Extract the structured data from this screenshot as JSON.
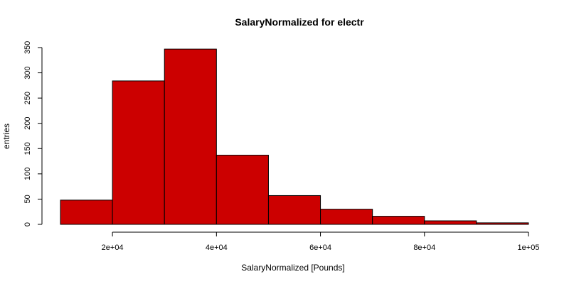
{
  "chart_data": {
    "type": "bar",
    "title": "SalaryNormalized for electr",
    "xlabel": "SalaryNormalized [Pounds]",
    "ylabel": "entries",
    "bar_color": "#cc0000",
    "bin_edges": [
      10000,
      20000,
      30000,
      40000,
      50000,
      60000,
      70000,
      80000,
      90000,
      100000
    ],
    "values": [
      48,
      284,
      347,
      137,
      57,
      30,
      16,
      7,
      3
    ],
    "xlim": [
      10000,
      100000
    ],
    "ylim": [
      0,
      350
    ],
    "x_ticks": [
      {
        "value": 20000,
        "label": "2e+04"
      },
      {
        "value": 40000,
        "label": "4e+04"
      },
      {
        "value": 60000,
        "label": "6e+04"
      },
      {
        "value": 80000,
        "label": "8e+04"
      },
      {
        "value": 100000,
        "label": "1e+05"
      }
    ],
    "y_ticks": [
      {
        "value": 0,
        "label": "0"
      },
      {
        "value": 50,
        "label": "50"
      },
      {
        "value": 100,
        "label": "100"
      },
      {
        "value": 150,
        "label": "150"
      },
      {
        "value": 200,
        "label": "200"
      },
      {
        "value": 250,
        "label": "250"
      },
      {
        "value": 300,
        "label": "300"
      },
      {
        "value": 350,
        "label": "350"
      }
    ],
    "grid": false,
    "legend": "none"
  }
}
